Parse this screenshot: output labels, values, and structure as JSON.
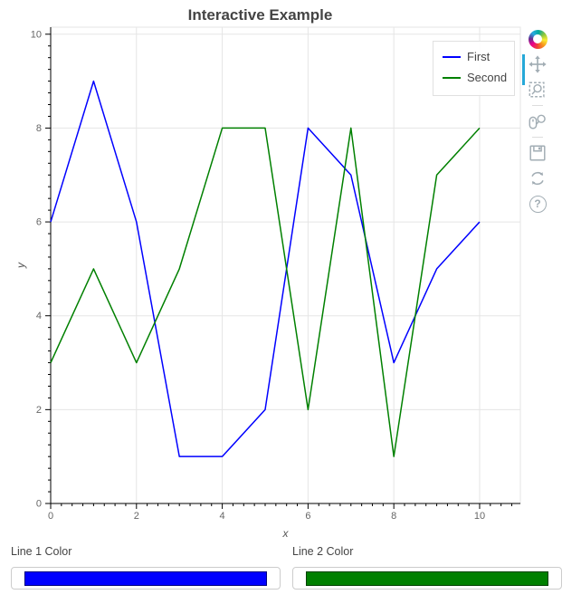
{
  "chart_data": {
    "type": "line",
    "title": "Interactive Example",
    "xlabel": "x",
    "ylabel": "y",
    "x": [
      0,
      1,
      2,
      3,
      4,
      5,
      6,
      7,
      8,
      9,
      10
    ],
    "series": [
      {
        "name": "First",
        "color": "#0000ff",
        "values": [
          6,
          9,
          6,
          1,
          1,
          2,
          8,
          7,
          3,
          5,
          6
        ]
      },
      {
        "name": "Second",
        "color": "#008000",
        "values": [
          3,
          5,
          3,
          5,
          8,
          8,
          2,
          8,
          1,
          7,
          8
        ]
      }
    ],
    "xlim": [
      0,
      10.95
    ],
    "ylim": [
      0,
      10.15
    ],
    "x_ticks": [
      0,
      2,
      4,
      6,
      8,
      10
    ],
    "y_ticks": [
      0,
      2,
      4,
      6,
      8,
      10
    ],
    "minor_tick_step": 0.25,
    "grid": true,
    "legend_position": "top_right"
  },
  "legend": {
    "entries": [
      "First",
      "Second"
    ]
  },
  "toolbar": {
    "logo": "bokeh-logo",
    "tools": [
      "pan",
      "box-zoom",
      "wheel-zoom",
      "save",
      "reset",
      "help"
    ],
    "active_tool": "pan",
    "help_glyph": "?"
  },
  "widgets": [
    {
      "label": "Line 1 Color",
      "value": "#0000ff"
    },
    {
      "label": "Line 2 Color",
      "value": "#008000"
    }
  ],
  "colors": {
    "accent_active_tool": "#26a8d8",
    "grid": "#e5e5e5",
    "axis": "#000000",
    "tick_label": "#666666",
    "title": "#444444",
    "toolbar_icon": "#a2adb4",
    "line1": "#0000ff",
    "line2": "#008000"
  }
}
